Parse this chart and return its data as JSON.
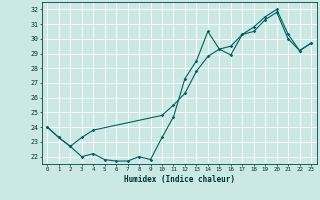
{
  "xlabel": "Humidex (Indice chaleur)",
  "bg_color": "#cce8e4",
  "grid_color": "#ffffff",
  "line_color": "#006060",
  "ylim": [
    21.5,
    32.5
  ],
  "xlim": [
    -0.5,
    23.5
  ],
  "yticks": [
    22,
    23,
    24,
    25,
    26,
    27,
    28,
    29,
    30,
    31,
    32
  ],
  "xticks": [
    0,
    1,
    2,
    3,
    4,
    5,
    6,
    7,
    8,
    9,
    10,
    11,
    12,
    13,
    14,
    15,
    16,
    17,
    18,
    19,
    20,
    21,
    22,
    23
  ],
  "series1_x": [
    0,
    1,
    2,
    3,
    4,
    5,
    6,
    7,
    8,
    9,
    10,
    11,
    12,
    13,
    14,
    15,
    16,
    17,
    18,
    19,
    20,
    21,
    22,
    23
  ],
  "series1_y": [
    24.0,
    23.3,
    22.7,
    22.0,
    22.2,
    21.8,
    21.7,
    21.7,
    22.0,
    21.8,
    23.3,
    24.7,
    27.3,
    28.5,
    30.5,
    29.3,
    28.9,
    30.3,
    30.5,
    31.3,
    31.8,
    30.0,
    29.2,
    29.7
  ],
  "series2_x": [
    0,
    1,
    2,
    3,
    4,
    10,
    11,
    12,
    13,
    14,
    15,
    16,
    17,
    18,
    19,
    20,
    21,
    22,
    23
  ],
  "series2_y": [
    24.0,
    23.3,
    22.7,
    23.3,
    23.8,
    24.8,
    25.5,
    26.3,
    27.8,
    28.8,
    29.3,
    29.5,
    30.3,
    30.8,
    31.5,
    32.0,
    30.3,
    29.2,
    29.7
  ]
}
